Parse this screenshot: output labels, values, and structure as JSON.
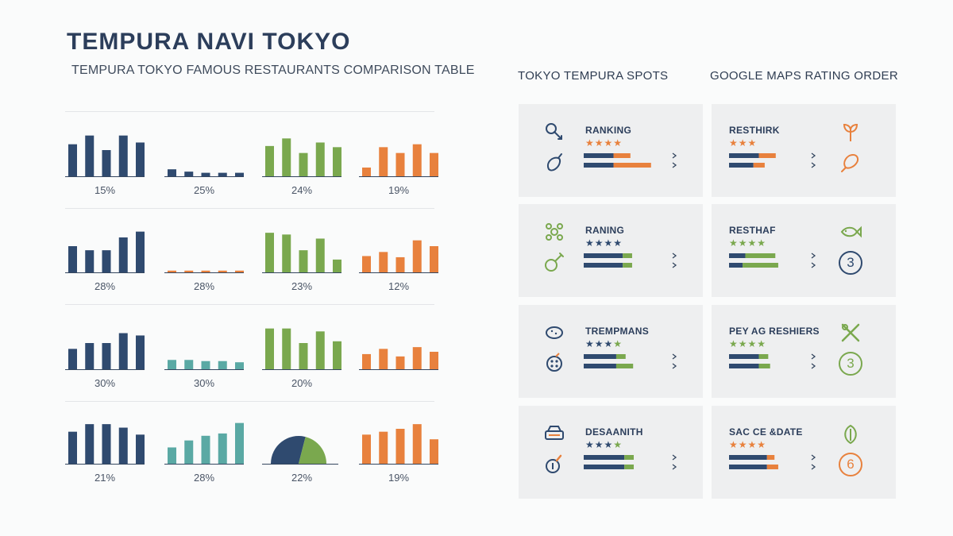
{
  "page": {
    "title": "TEMPURA NAVI TOKYO",
    "subtitle": "TEMPURA TOKYO FAMOUS RESTAURANTS COMPARISON TABLE",
    "right_headers": [
      "TOKYO TEMPURA SPOTS",
      "GOOGLE MAPS RATING ORDER"
    ]
  },
  "colors": {
    "navy": "#2f4a6f",
    "teal": "#5aa9a4",
    "green": "#7aa84e",
    "orange": "#e8813d"
  },
  "chart_data": {
    "type": "bar",
    "title": "TEMPURA TOKYO FAMOUS RESTAURANTS COMPARISON TABLE",
    "rows": [
      [
        {
          "type": "bar",
          "color": "navy",
          "values": [
            5.5,
            7,
            4.5,
            7,
            5.8
          ],
          "label": "15%"
        },
        {
          "type": "bar",
          "color": "navy",
          "values": [
            1.2,
            0.8,
            0.6,
            0.6,
            0.6
          ],
          "label": "25%"
        },
        {
          "type": "bar",
          "color": "green",
          "values": [
            5.2,
            6.5,
            4,
            5.8,
            5
          ],
          "label": "24%"
        },
        {
          "type": "bar",
          "color": "orange",
          "values": [
            1.5,
            5,
            4,
            5.5,
            4
          ],
          "label": "19%"
        }
      ],
      [
        {
          "type": "bar",
          "color": "navy",
          "values": [
            4.5,
            3.8,
            3.8,
            6,
            7
          ],
          "label": "28%"
        },
        {
          "type": "bar",
          "color": "orange",
          "values": [
            0.3,
            0.3,
            0.3,
            0.3,
            0.3
          ],
          "label": "28%"
        },
        {
          "type": "bar",
          "color": "green",
          "values": [
            6.8,
            6.5,
            3.8,
            5.8,
            2.2
          ],
          "label": "23%"
        },
        {
          "type": "bar",
          "color": "orange",
          "values": [
            2.8,
            3.5,
            2.6,
            5.5,
            4.5
          ],
          "label": "12%"
        }
      ],
      [
        {
          "type": "bar",
          "color": "navy",
          "values": [
            3.5,
            4.5,
            4.5,
            6.2,
            5.8
          ],
          "label": "30%"
        },
        {
          "type": "bar",
          "color": "teal",
          "values": [
            1.6,
            1.6,
            1.4,
            1.4,
            1.2
          ],
          "label": "30%"
        },
        {
          "type": "bar",
          "color": "green",
          "values": [
            7,
            7,
            4.5,
            6.5,
            4.8
          ],
          "label": "20%"
        },
        {
          "type": "bar",
          "color": "orange",
          "values": [
            2.6,
            3.5,
            2.2,
            3.8,
            3
          ]
        }
      ],
      [
        {
          "type": "bar",
          "color": "navy",
          "values": [
            5.5,
            6.8,
            6.8,
            6.2,
            5
          ],
          "label": "21%"
        },
        {
          "type": "bar",
          "color": "teal",
          "values": [
            2.8,
            4,
            4.8,
            5.2,
            7
          ],
          "label": "28%"
        },
        {
          "type": "pie",
          "colors": [
            "navy",
            "green"
          ],
          "values": [
            58,
            42
          ],
          "label": "22%"
        },
        {
          "type": "bar",
          "color": "orange",
          "values": [
            5,
            5.5,
            6,
            6.8,
            4.2
          ],
          "label": "19%"
        }
      ]
    ]
  },
  "cards": [
    {
      "label": "RANKING",
      "stars": 4,
      "star_color": "orange",
      "icons": [
        "tempura-shrimp-icon",
        "eggplant-icon"
      ],
      "icon_color": "navy",
      "bars": [
        {
          "navy": 0.55,
          "accent": 0.45,
          "accent_color": "orange"
        },
        {
          "navy": 0.55,
          "accent": 1.0,
          "accent_color": "orange"
        }
      ]
    },
    {
      "label": "RESTHIRK",
      "stars": 3,
      "star_color": "orange",
      "icons": [
        "sprout-icon",
        "fried-chicken-icon"
      ],
      "icon_color": "orange",
      "bars": [
        {
          "navy": 0.55,
          "accent": 0.45,
          "accent_color": "orange"
        },
        {
          "navy": 0.45,
          "accent": 0.3,
          "accent_color": "orange"
        }
      ]
    },
    {
      "label": "RANING",
      "stars": 4,
      "star_color": "navy",
      "icons": [
        "flower-icon",
        "drumstick-icon"
      ],
      "icon_color": "green",
      "bars": [
        {
          "navy": 0.72,
          "accent": 0.25,
          "accent_color": "green"
        },
        {
          "navy": 0.72,
          "accent": 0.25,
          "accent_color": "green"
        }
      ]
    },
    {
      "label": "RESTHAF",
      "stars": 4,
      "star_color": "green",
      "icons": [
        "fish-icon"
      ],
      "icon_color": "green",
      "badge": "3",
      "badge_color": "navy",
      "bars": [
        {
          "navy": 0.3,
          "accent": 0.8,
          "accent_color": "green"
        },
        {
          "navy": 0.25,
          "accent": 0.95,
          "accent_color": "green"
        }
      ]
    },
    {
      "label": "TREMPMANS",
      "stars": 3.5,
      "star_color": "navy",
      "icons": [
        "shiitake-icon",
        "lotus-root-icon"
      ],
      "icon_color": "navy",
      "bars": [
        {
          "navy": 0.6,
          "accent": 0.25,
          "accent_color": "green"
        },
        {
          "navy": 0.6,
          "accent": 0.45,
          "accent_color": "green"
        }
      ]
    },
    {
      "label": "PEY AG RESHIERS",
      "stars": 4,
      "star_color": "green",
      "icons": [
        "chopsticks-icon"
      ],
      "icon_color": "green",
      "badge": "3",
      "badge_color": "green",
      "bars": [
        {
          "navy": 0.55,
          "accent": 0.25,
          "accent_color": "green"
        },
        {
          "navy": 0.55,
          "accent": 0.3,
          "accent_color": "green"
        }
      ]
    },
    {
      "label": "DESAANITH",
      "stars": 3.5,
      "star_color": "navy",
      "icons": [
        "rice-box-icon",
        "shishito-icon"
      ],
      "icon_color": "navy",
      "bars": [
        {
          "navy": 0.75,
          "accent": 0.25,
          "accent_color": "green"
        },
        {
          "navy": 0.75,
          "accent": 0.25,
          "accent_color": "green"
        }
      ]
    },
    {
      "label": "SAC CE &DATE",
      "stars": 4,
      "star_color": "orange",
      "icons": [
        "leaf-icon"
      ],
      "icon_color": "green",
      "badge": "6",
      "badge_color": "orange",
      "bars": [
        {
          "navy": 0.7,
          "accent": 0.2,
          "accent_color": "orange"
        },
        {
          "navy": 0.7,
          "accent": 0.3,
          "accent_color": "orange"
        }
      ]
    }
  ]
}
